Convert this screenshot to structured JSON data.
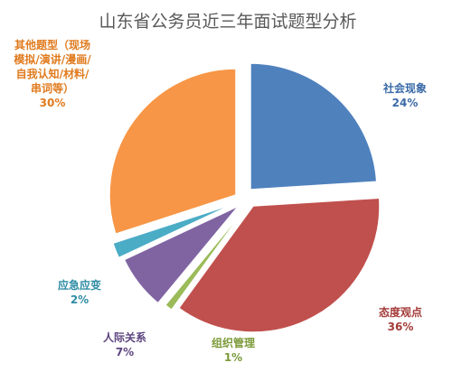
{
  "chart_data": {
    "type": "pie",
    "title": "山东省公务员近三年面试题型分析",
    "slices": [
      {
        "key": "shehui",
        "label_lines": [
          "社会现象"
        ],
        "value": 24,
        "pct_label": "24%",
        "color": "#4f81bd",
        "label_color": "#3a6aa8"
      },
      {
        "key": "taidu",
        "label_lines": [
          "态度观点"
        ],
        "value": 36,
        "pct_label": "36%",
        "color": "#c0504d",
        "label_color": "#a33b38"
      },
      {
        "key": "zuzhi",
        "label_lines": [
          "组织管理"
        ],
        "value": 1,
        "pct_label": "1%",
        "color": "#9bbb59",
        "label_color": "#7c9a3a"
      },
      {
        "key": "renji",
        "label_lines": [
          "人际关系"
        ],
        "value": 7,
        "pct_label": "7%",
        "color": "#8064a2",
        "label_color": "#5d4680"
      },
      {
        "key": "yingji",
        "label_lines": [
          "应急应变"
        ],
        "value": 2,
        "pct_label": "2%",
        "color": "#4bacc6",
        "label_color": "#2e8ca5"
      },
      {
        "key": "qita",
        "label_lines": [
          "其他题型（现场",
          "模拟/演讲/漫画/",
          "自我认知/材料/",
          "串词等）"
        ],
        "value": 30,
        "pct_label": "30%",
        "color": "#f79646",
        "label_color": "#e07b1f"
      }
    ]
  }
}
